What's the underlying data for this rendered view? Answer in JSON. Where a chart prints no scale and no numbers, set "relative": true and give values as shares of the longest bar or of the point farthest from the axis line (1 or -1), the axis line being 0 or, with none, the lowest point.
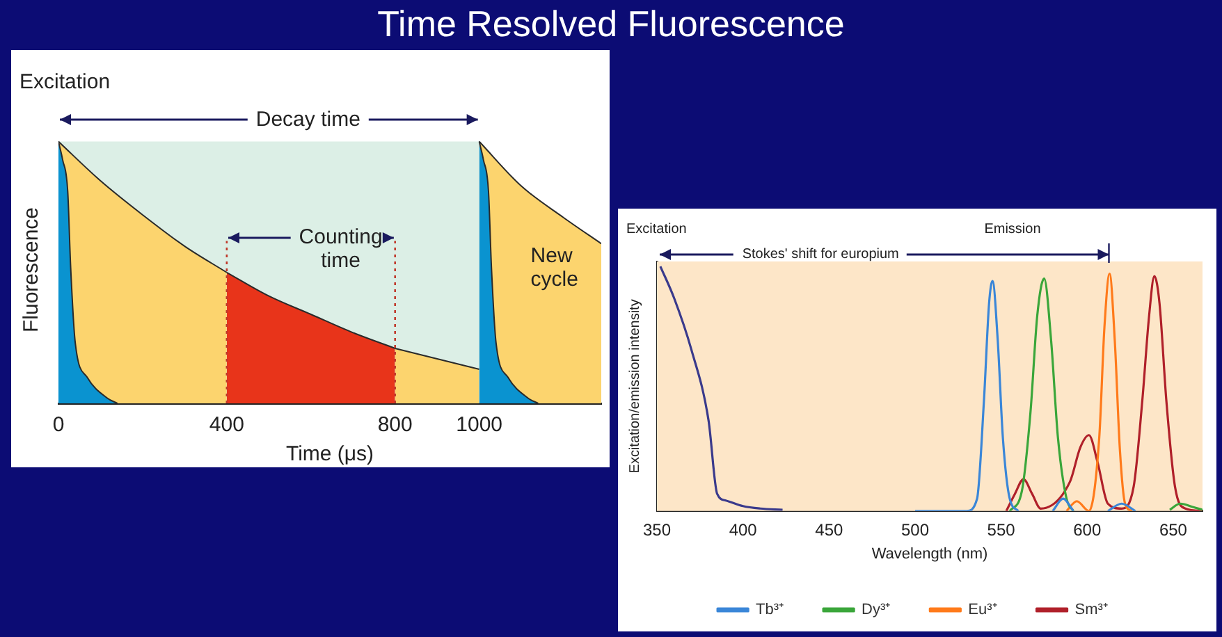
{
  "chart_data": [
    {
      "type": "area",
      "title": "Time Resolved Fluorescence",
      "xlabel": "Time (μs)",
      "ylabel": "Fluorescence",
      "relative": true,
      "xlim": [
        0,
        1290
      ],
      "xticks": [
        0,
        400,
        800,
        1000
      ],
      "grid": false,
      "legend": false,
      "marker": "none",
      "annotations": [
        "Excitation",
        "Decay time",
        "Counting time",
        "New cycle"
      ],
      "bands": [
        {
          "axis": "x",
          "from": 0,
          "to": 1000,
          "color": "#dcefe6"
        }
      ],
      "ref_lines": [
        {
          "axis": "x",
          "value": 400,
          "color": "#c0392b",
          "line_style": "dotted"
        },
        {
          "axis": "x",
          "value": 800,
          "color": "#c0392b",
          "line_style": "dotted"
        }
      ],
      "series": [
        {
          "color": "#fcd46e",
          "x": [
            0,
            100,
            200,
            300,
            400
          ],
          "values": [
            1,
            0.85,
            0.72,
            0.6,
            0.5
          ]
        },
        {
          "color": "#e8341a",
          "x": [
            400,
            500,
            600,
            700,
            800
          ],
          "values": [
            0.5,
            0.41,
            0.34,
            0.27,
            0.21
          ]
        },
        {
          "color": "#fcd46e",
          "x": [
            800,
            900,
            1000
          ],
          "values": [
            0.21,
            0.17,
            0.13
          ]
        },
        {
          "color": "#fcd46e",
          "x": [
            1000,
            1100,
            1200,
            1290
          ],
          "values": [
            1,
            0.83,
            0.71,
            0.61
          ]
        },
        {
          "color": "#0a93d0",
          "x": [
            0,
            10,
            22,
            29,
            40,
            68,
            116,
            140
          ],
          "values": [
            1,
            0.93,
            0.81,
            0.52,
            0.23,
            0.1,
            0.02,
            0
          ]
        },
        {
          "color": "#0a93d0",
          "x": [
            1000,
            1010,
            1022,
            1029,
            1040,
            1068,
            1116,
            1140
          ],
          "values": [
            1,
            0.93,
            0.81,
            0.52,
            0.23,
            0.1,
            0.02,
            0
          ]
        }
      ]
    },
    {
      "type": "line",
      "xlabel": "Wavelength (nm)",
      "ylabel": "Excitation/emission intensity",
      "relative": true,
      "xlim": [
        350,
        667
      ],
      "xticks": [
        350,
        400,
        450,
        500,
        550,
        600,
        650
      ],
      "grid": false,
      "legend": "bottom",
      "marker": "none",
      "annotations": [
        "Excitation",
        "Emission",
        "Stokes' shift for europium"
      ],
      "series": [
        {
          "color": "#3a3a8c",
          "x": [
            352,
            360,
            370,
            380,
            385,
            390,
            400,
            410,
            423
          ],
          "values": [
            1,
            0.87,
            0.66,
            0.37,
            0.07,
            0.043,
            0.02,
            0.01,
            0.005
          ]
        },
        {
          "name": "Tb³⁺",
          "color": "#3a86d8",
          "x": [
            500,
            530,
            536,
            540,
            543,
            545,
            548,
            551,
            555,
            560,
            570,
            580,
            586,
            592,
            600,
            612,
            620,
            628
          ],
          "values": [
            0,
            0,
            0.05,
            0.45,
            0.85,
            0.94,
            0.7,
            0.3,
            0.05,
            0,
            null,
            0,
            0.05,
            0,
            null,
            0,
            0.03,
            0
          ]
        },
        {
          "name": "Dy³⁺",
          "color": "#3aa63a",
          "x": [
            555,
            562,
            567,
            571,
            575,
            579,
            583,
            588,
            592,
            620,
            648,
            654,
            662,
            667
          ],
          "values": [
            0,
            0.08,
            0.4,
            0.8,
            0.95,
            0.7,
            0.3,
            0.05,
            0,
            null,
            0.005,
            0.03,
            0.015,
            0.005
          ]
        },
        {
          "name": "Eu³⁺",
          "color": "#ff7a1a",
          "x": [
            588,
            594,
            601,
            607,
            610,
            613,
            616,
            619,
            622,
            626
          ],
          "values": [
            0,
            0.04,
            0,
            0.3,
            0.75,
            0.97,
            0.7,
            0.25,
            0.03,
            0
          ]
        },
        {
          "name": "Sm³⁺",
          "color": "#b0202a",
          "x": [
            553,
            558,
            563,
            568,
            573,
            590,
            596,
            601,
            606,
            612,
            620,
            627,
            632,
            636,
            639,
            642,
            646,
            651,
            657,
            667
          ],
          "values": [
            0,
            0.07,
            0.13,
            0.07,
            0.01,
            0.12,
            0.26,
            0.31,
            0.2,
            0.03,
            0.01,
            0.1,
            0.45,
            0.8,
            0.96,
            0.85,
            0.45,
            0.1,
            0.01,
            0
          ]
        }
      ]
    }
  ]
}
